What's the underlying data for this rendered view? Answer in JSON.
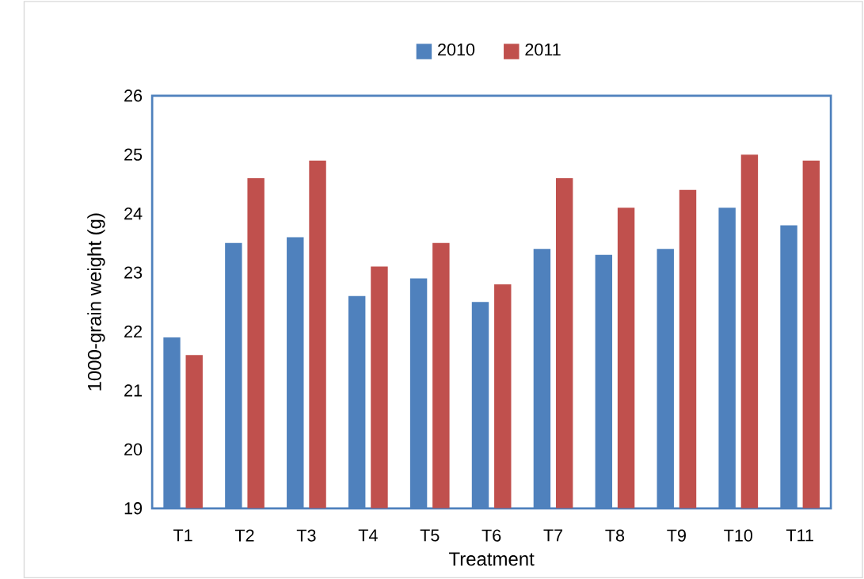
{
  "chart_data": {
    "type": "bar",
    "xlabel": "Treatment",
    "ylabel": "1000-grain weight (g)",
    "categories": [
      "T1",
      "T2",
      "T3",
      "T4",
      "T5",
      "T6",
      "T7",
      "T8",
      "T9",
      "T10",
      "T11"
    ],
    "series": [
      {
        "name": "2010",
        "color": "#4f81bd",
        "values": [
          21.9,
          23.5,
          23.6,
          22.6,
          22.9,
          22.5,
          23.4,
          23.3,
          23.4,
          24.1,
          23.8
        ]
      },
      {
        "name": "2011",
        "color": "#c0504d",
        "values": [
          21.6,
          24.6,
          24.9,
          23.1,
          23.5,
          22.8,
          24.6,
          24.1,
          24.4,
          25.0,
          24.9
        ]
      }
    ],
    "ylim": [
      19,
      26
    ],
    "yticks": [
      19,
      20,
      21,
      22,
      23,
      24,
      25,
      26
    ],
    "legend": "top",
    "grid": false
  }
}
